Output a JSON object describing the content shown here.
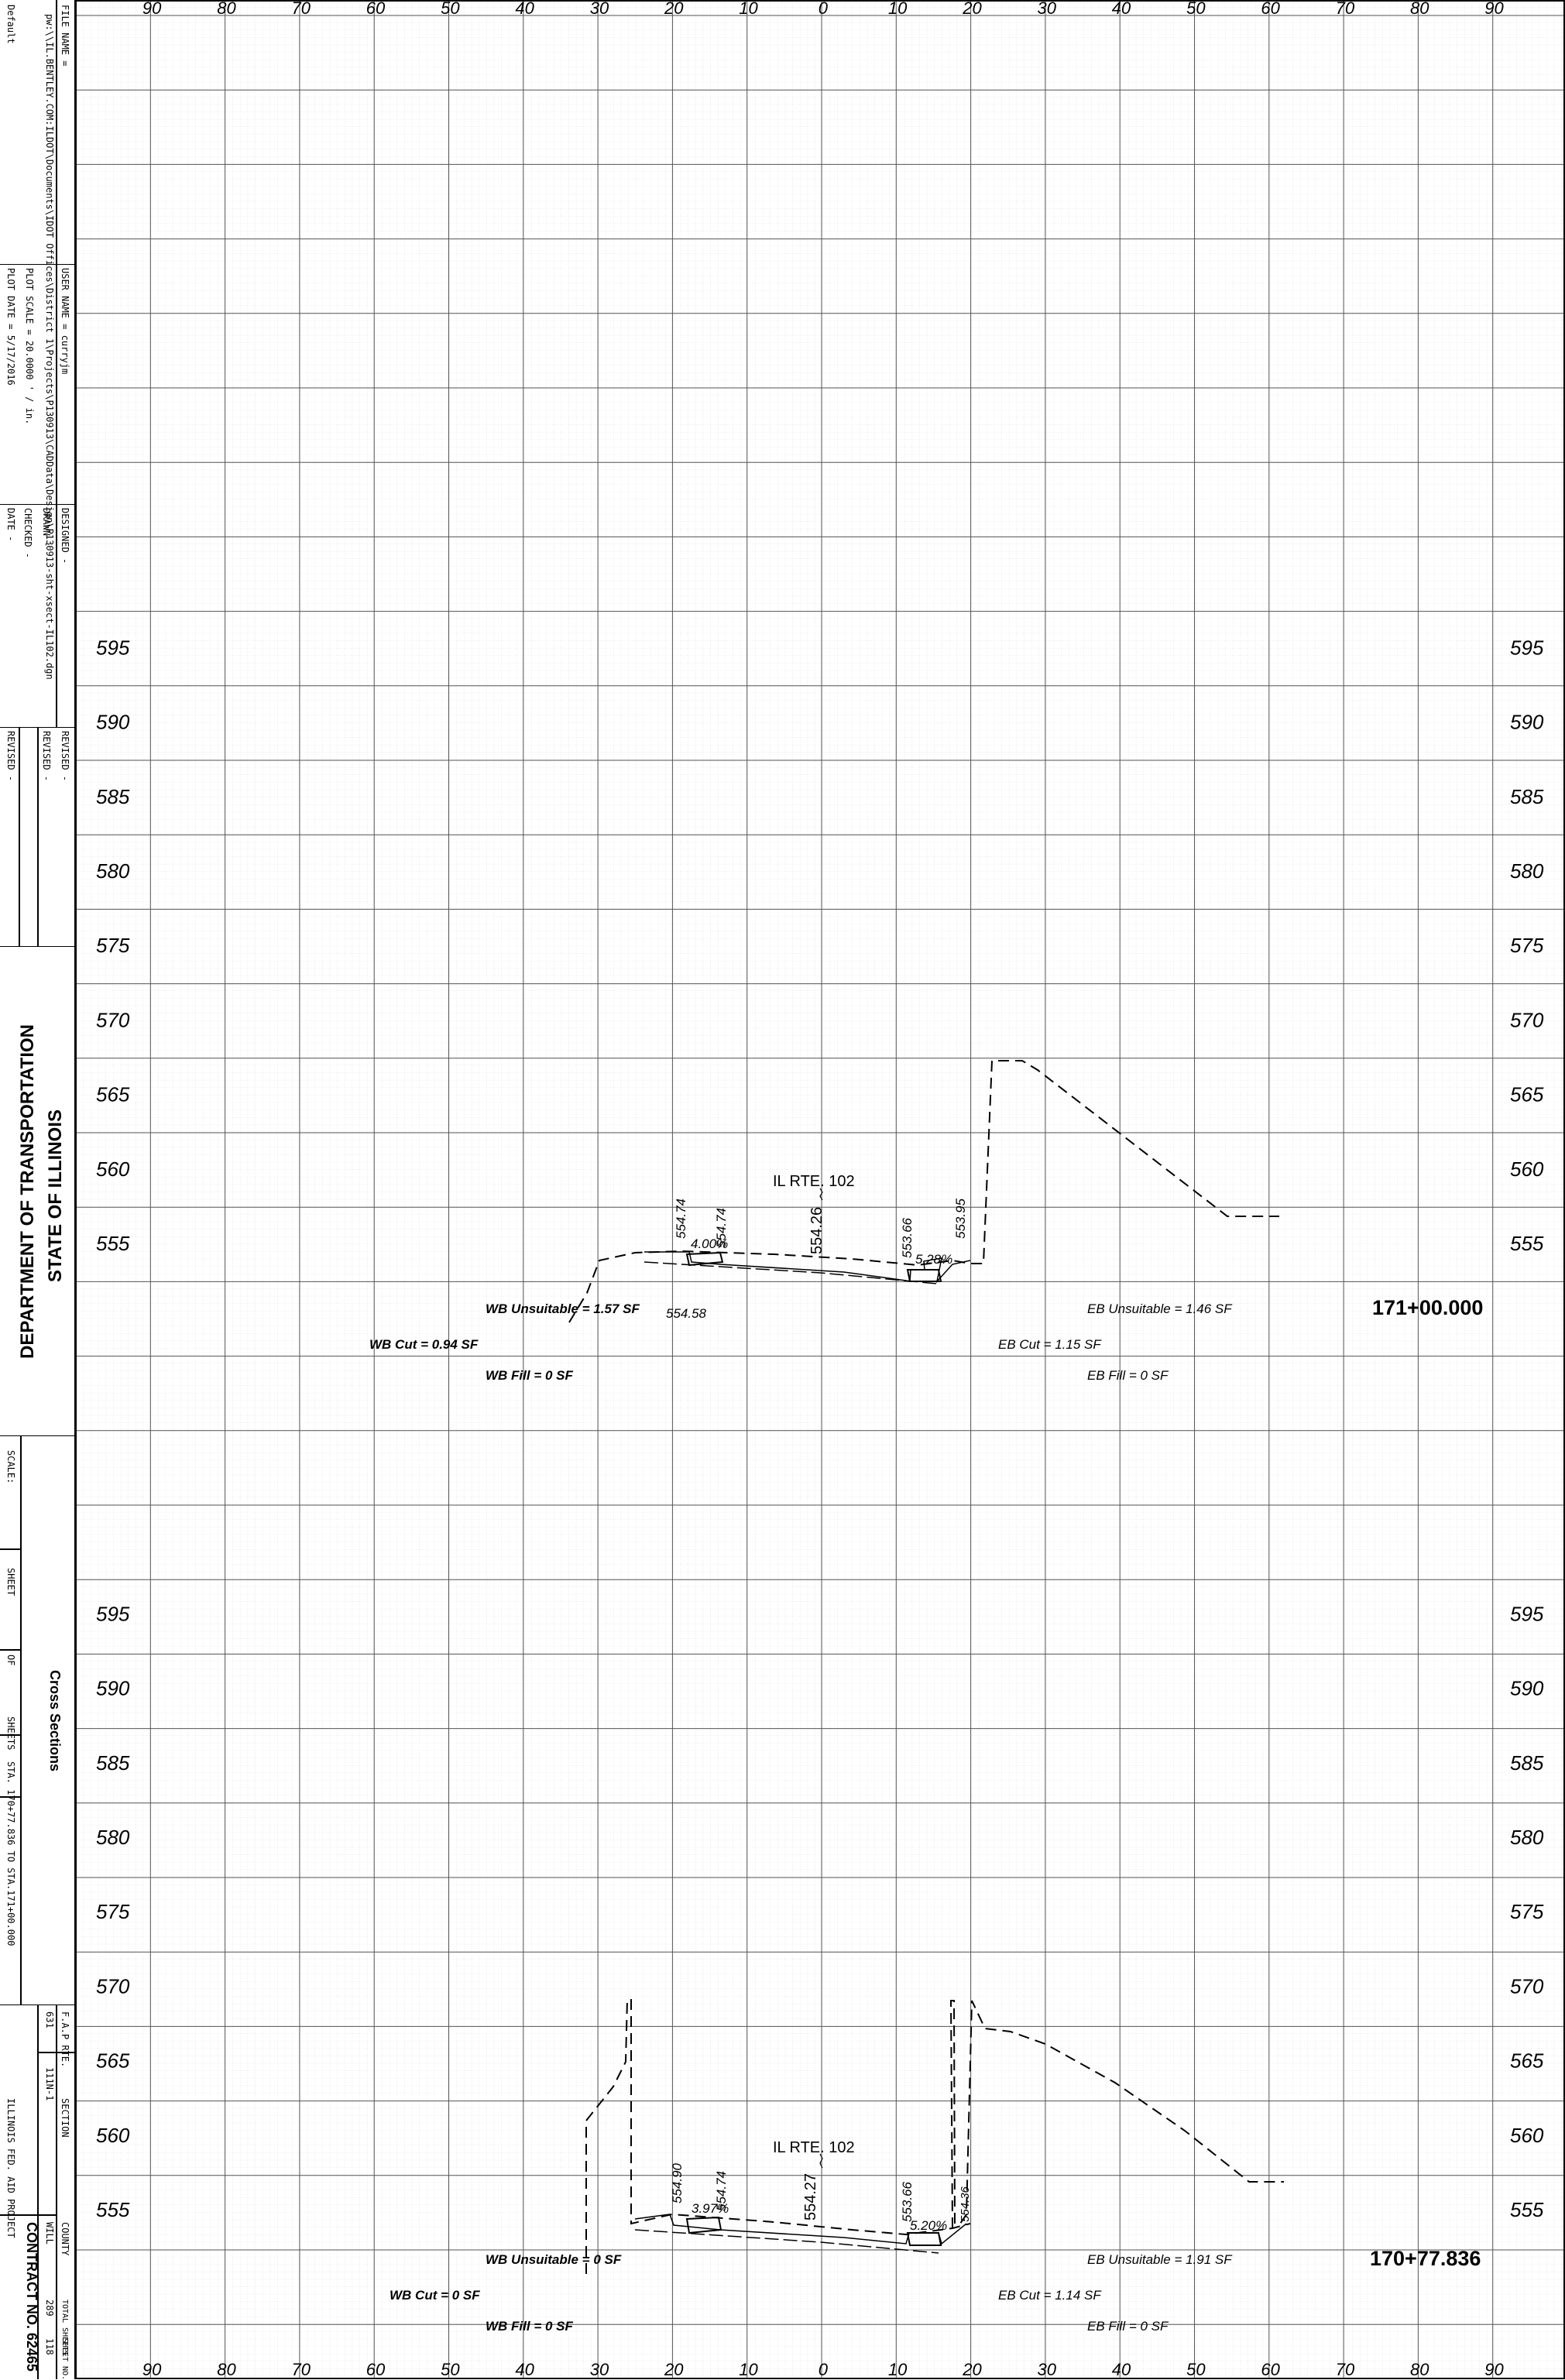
{
  "title_block": {
    "file_name_label": "FILE NAME =",
    "file_name": "pw:\\\\IL.BENTLEY.COM:ILDOT\\Documents\\IDOT Offices\\District 1\\Projects\\P130913\\CADData\\Design\\P130913-sht-xsect-IL102.dgn",
    "default": "Default",
    "user_name": "USER NAME  = curryjm",
    "plot_scale": "PLOT SCALE = 20.0000 ' / in.",
    "plot_date": "PLOT DATE  = 5/17/2016",
    "designed": "DESIGNED  -",
    "drawn": "DRAWN     -",
    "checked": "CHECKED   -",
    "date": "DATE      -",
    "revised_1": "REVISED  -",
    "revised_2": "REVISED  -",
    "revised_3": "REVISED  -",
    "agency_line1": "STATE OF ILLINOIS",
    "agency_line2": "DEPARTMENT OF TRANSPORTATION",
    "scale": "SCALE:",
    "sheet": "SHEET",
    "of": "OF",
    "sheets": "SHEETS",
    "station_range": "STA. 170+77.836    TO  STA.171+00.000",
    "title": "Cross Sections",
    "fap_rte_label": "F.A.P RTE.",
    "fap_rte": "631",
    "section_label": "SECTION",
    "section": "111N-1",
    "county_label": "COUNTY",
    "county": "WILL",
    "total_sheets_label": "TOTAL SHEETS",
    "total_sheets": "289",
    "sheet_no_label": "SHEET NO.",
    "sheet_no": "118",
    "fed_aid": "ILLINOIS FED. AID PROJECT",
    "contract": "CONTRACT NO. 62465"
  },
  "offset_labels": [
    "90",
    "80",
    "70",
    "60",
    "50",
    "40",
    "30",
    "20",
    "10",
    "0",
    "10",
    "20",
    "30",
    "40",
    "50",
    "60",
    "70",
    "80",
    "90"
  ],
  "sections": [
    {
      "station": "171+00.000",
      "elevation_labels": [
        "595",
        "590",
        "585",
        "580",
        "575",
        "570",
        "565",
        "560",
        "555"
      ],
      "route_label": "IL RTE. 102",
      "centerline_elev": "554.26",
      "point_labels": [
        "554.74",
        "554.74",
        "553.66",
        "553.95",
        "554.58"
      ],
      "slope_labels": [
        "4.00%",
        "5.28%"
      ],
      "quantities": {
        "wb_unsuitable": "WB Unsuitable = 1.57 SF",
        "wb_cut": "WB Cut = 0.94 SF",
        "wb_fill": "WB Fill = 0 SF",
        "eb_unsuitable": "EB Unsuitable = 1.46 SF",
        "eb_cut": "EB Cut = 1.15 SF",
        "eb_fill": "EB Fill = 0 SF"
      }
    },
    {
      "station": "170+77.836",
      "elevation_labels": [
        "595",
        "590",
        "585",
        "580",
        "575",
        "570",
        "565",
        "560",
        "555"
      ],
      "route_label": "IL RTE. 102",
      "centerline_elev": "554.27",
      "point_labels": [
        "554.90",
        "554.74",
        "553.66",
        "554.36"
      ],
      "slope_labels": [
        "3.97%",
        "5.20%"
      ],
      "quantities": {
        "wb_unsuitable": "WB Unsuitable = 0 SF",
        "wb_cut": "WB Cut = 0 SF",
        "wb_fill": "WB Fill = 0 SF",
        "eb_unsuitable": "EB Unsuitable = 1.91 SF",
        "eb_cut": "EB Cut = 1.14 SF",
        "eb_fill": "EB Fill = 0 SF"
      }
    }
  ]
}
